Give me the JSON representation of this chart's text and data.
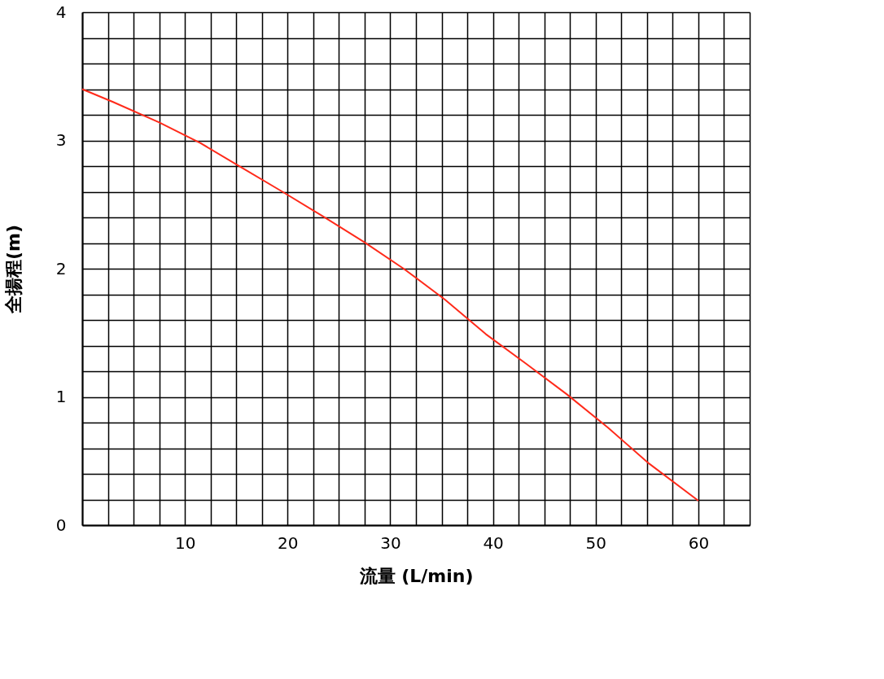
{
  "chart_data": {
    "type": "line",
    "xlabel": "流量 (L/min)",
    "ylabel": "全揚程(m)",
    "x": [
      0,
      3,
      7.5,
      11.5,
      15.5,
      19.5,
      23.4,
      27.4,
      31.3,
      35.3,
      39.3,
      43.2,
      47.2,
      51.2,
      55.2,
      60
    ],
    "series": [
      {
        "color": "#ff2a1a",
        "values": [
          3.4,
          3.3,
          3.14,
          2.98,
          2.79,
          2.6,
          2.41,
          2.21,
          2.0,
          1.76,
          1.49,
          1.26,
          1.02,
          0.76,
          0.48,
          0.19
        ]
      }
    ],
    "xlim": [
      0,
      65
    ],
    "ylim": [
      0,
      4
    ],
    "xticks": [
      {
        "value": 0,
        "label": null
      },
      {
        "value": 2.5,
        "label": null
      },
      {
        "value": 5,
        "label": null
      },
      {
        "value": 7.5,
        "label": null
      },
      10,
      {
        "value": 12.5,
        "label": null
      },
      {
        "value": 15,
        "label": null
      },
      {
        "value": 17.5,
        "label": null
      },
      20,
      {
        "value": 22.5,
        "label": null
      },
      {
        "value": 25,
        "label": null
      },
      {
        "value": 27.5,
        "label": null
      },
      30,
      {
        "value": 32.5,
        "label": null
      },
      {
        "value": 35,
        "label": null
      },
      {
        "value": 37.5,
        "label": null
      },
      40,
      {
        "value": 42.5,
        "label": null
      },
      {
        "value": 45,
        "label": null
      },
      {
        "value": 47.5,
        "label": null
      },
      50,
      {
        "value": 52.5,
        "label": null
      },
      {
        "value": 55,
        "label": null
      },
      {
        "value": 57.5,
        "label": null
      },
      60,
      {
        "value": 62.5,
        "label": null
      },
      {
        "value": 65,
        "label": null
      }
    ],
    "yticks": [
      0,
      {
        "value": 0.2,
        "label": null
      },
      {
        "value": 0.4,
        "label": null
      },
      {
        "value": 0.6,
        "label": null
      },
      {
        "value": 0.8,
        "label": null
      },
      1,
      {
        "value": 1.2,
        "label": null
      },
      {
        "value": 1.4,
        "label": null
      },
      {
        "value": 1.6,
        "label": null
      },
      {
        "value": 1.8,
        "label": null
      },
      2,
      {
        "value": 2.2,
        "label": null
      },
      {
        "value": 2.4,
        "label": null
      },
      {
        "value": 2.6,
        "label": null
      },
      {
        "value": 2.8,
        "label": null
      },
      3,
      {
        "value": 3.2,
        "label": null
      },
      {
        "value": 3.4,
        "label": null
      },
      {
        "value": 3.6,
        "label": null
      },
      {
        "value": 3.8,
        "label": null
      },
      4
    ],
    "grid": true,
    "marker": "none",
    "line_style": "solid"
  }
}
